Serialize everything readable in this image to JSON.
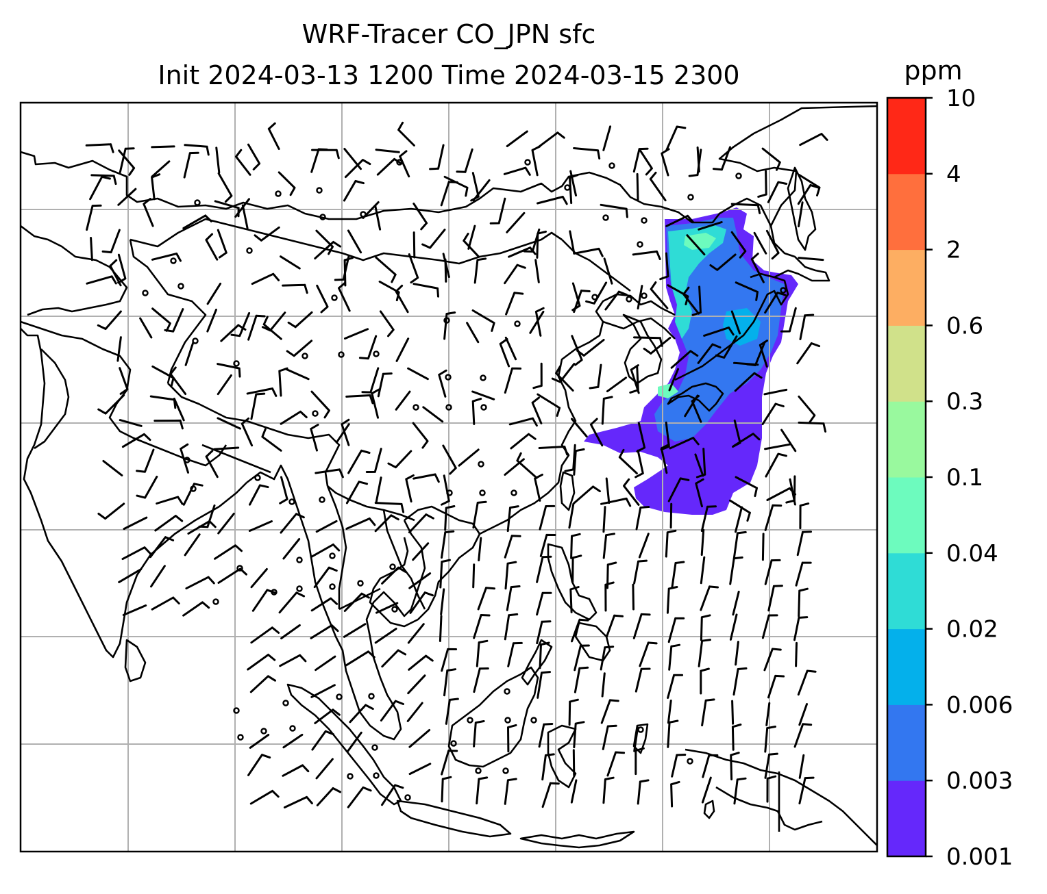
{
  "title": {
    "line1": "WRF-Tracer CO_JPN sfc",
    "line2": "Init 2024-03-13 1200 Time 2024-03-15 2300"
  },
  "colorbar": {
    "unit": "ppm",
    "levels": [
      "0.001",
      "0.003",
      "0.006",
      "0.02",
      "0.04",
      "0.1",
      "0.3",
      "0.6",
      "2",
      "4",
      "10"
    ],
    "colors": [
      "#6528fb",
      "#3377f0",
      "#04b0eb",
      "#2fdcd6",
      "#6dfbbe",
      "#99f99e",
      "#d0e18a",
      "#fdae62",
      "#ff6f3d",
      "#ff2817"
    ]
  },
  "map": {
    "grid": "on",
    "plume_color_low": "#6528fb",
    "plume_color_mid": "#3377f0",
    "plume_color_high": "#2fdcd6",
    "plume_color_peak": "#6dfbbe",
    "coastline_color": "#000000",
    "grid_color": "#b0b0b0"
  }
}
